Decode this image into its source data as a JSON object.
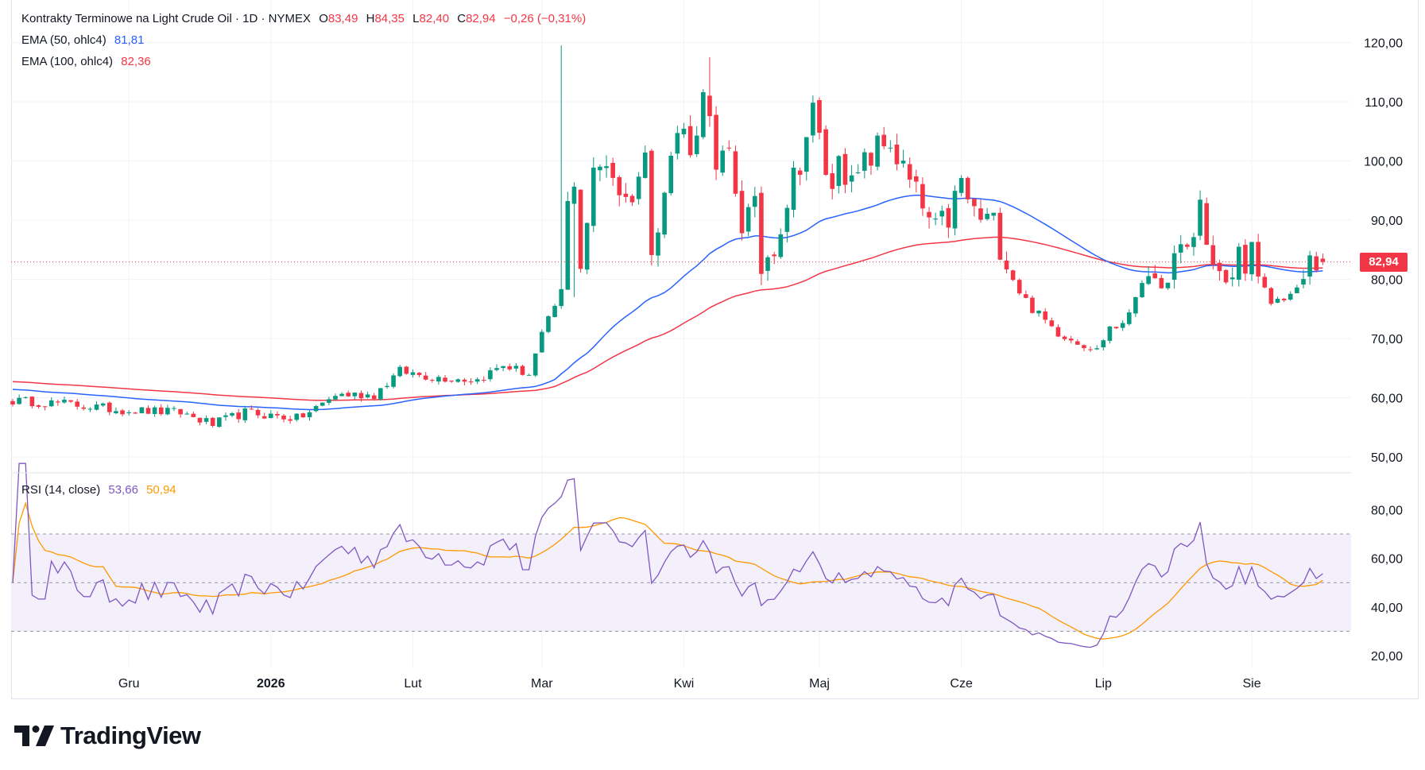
{
  "legend": {
    "title": "Kontrakty Terminowe na Light Crude Oil · 1D · NYMEX",
    "o_label": "O",
    "o_value": "83,49",
    "h_label": "H",
    "h_value": "84,35",
    "l_label": "L",
    "l_value": "82,40",
    "c_label": "C",
    "c_value": "82,94",
    "change": "−0,26 (−0,31%)",
    "ema50_label": "EMA (50, ohlc4)",
    "ema50_value": "81,81",
    "ema100_label": "EMA (100, ohlc4)",
    "ema100_value": "82,36",
    "rsi_label": "RSI (14, close)",
    "rsi_value": "53,66",
    "rsi_ma_value": "50,94"
  },
  "price_tag": "82,94",
  "brand": {
    "name": "TradingView",
    "icon": "tradingview-logo-icon"
  },
  "colors": {
    "up": "#089981",
    "down": "#f23645",
    "ema50": "#2962ff",
    "ema100": "#f23645",
    "rsi": "#7e57c2",
    "rsi_ma": "#ff9800",
    "rsi_band": "#f3effb"
  },
  "chart_data": [
    {
      "type": "candlestick",
      "title": "Kontrakty Terminowe na Light Crude Oil · 1D · NYMEX",
      "ylim": [
        50,
        120
      ],
      "y_ticks": [
        "120,00",
        "110,00",
        "100,00",
        "90,00",
        "80,00",
        "70,00",
        "60,00",
        "50,00"
      ],
      "y_tick_values": [
        120,
        110,
        100,
        90,
        80,
        70,
        60,
        50
      ],
      "x_ticks": [
        {
          "label": "Gru",
          "index": 18,
          "bold": false
        },
        {
          "label": "2026",
          "index": 40,
          "bold": true
        },
        {
          "label": "Lut",
          "index": 62,
          "bold": false
        },
        {
          "label": "Mar",
          "index": 82,
          "bold": false
        },
        {
          "label": "Kwi",
          "index": 104,
          "bold": false
        },
        {
          "label": "Maj",
          "index": 125,
          "bold": false
        },
        {
          "label": "Cze",
          "index": 147,
          "bold": false
        },
        {
          "label": "Lip",
          "index": 169,
          "bold": false
        },
        {
          "label": "Sie",
          "index": 192,
          "bold": false
        }
      ],
      "last_close": 82.94,
      "ema50_last": 81.81,
      "ema100_last": 82.36,
      "waypoints": [
        [
          0,
          59.5
        ],
        [
          8,
          59.0
        ],
        [
          16,
          58.0
        ],
        [
          26,
          57.5
        ],
        [
          31,
          55.5
        ],
        [
          36,
          57.5
        ],
        [
          44,
          56.5
        ],
        [
          46,
          57.5
        ],
        [
          50,
          60.5
        ],
        [
          56,
          60.5
        ],
        [
          60,
          64.5
        ],
        [
          65,
          63.5
        ],
        [
          72,
          63.0
        ],
        [
          76,
          65.5
        ],
        [
          80,
          64.0
        ],
        [
          82,
          70.5
        ],
        [
          85,
          78.0
        ],
        [
          86,
          92.0
        ],
        [
          87,
          97.5
        ],
        [
          88,
          83.0
        ],
        [
          90,
          97.0
        ],
        [
          92,
          100.5
        ],
        [
          95,
          93.0
        ],
        [
          98,
          100.0
        ],
        [
          99,
          87.0
        ],
        [
          101,
          95.0
        ],
        [
          103,
          105.0
        ],
        [
          106,
          103.0
        ],
        [
          107,
          114.5
        ],
        [
          109,
          97.0
        ],
        [
          111,
          101.0
        ],
        [
          113,
          90.0
        ],
        [
          115,
          91.0
        ],
        [
          116,
          82.0
        ],
        [
          118,
          86.5
        ],
        [
          121,
          97.0
        ],
        [
          124,
          108.0
        ],
        [
          127,
          94.0
        ],
        [
          128,
          103.0
        ],
        [
          130,
          95.0
        ],
        [
          133,
          101.0
        ],
        [
          136,
          103.5
        ],
        [
          138,
          98.0
        ],
        [
          140,
          94.0
        ],
        [
          143,
          87.5
        ],
        [
          145,
          90.5
        ],
        [
          147,
          96.0
        ],
        [
          149,
          91.0
        ],
        [
          152,
          89.0
        ],
        [
          154,
          84.0
        ],
        [
          156,
          78.0
        ],
        [
          158,
          75.0
        ],
        [
          162,
          71.0
        ],
        [
          166,
          69.0
        ],
        [
          168,
          68.0
        ],
        [
          170,
          72.0
        ],
        [
          172,
          72.0
        ],
        [
          175,
          80.0
        ],
        [
          179,
          79.0
        ],
        [
          181,
          85.0
        ],
        [
          183,
          87.0
        ],
        [
          184,
          93.0
        ],
        [
          186,
          82.0
        ],
        [
          188,
          79.0
        ],
        [
          190,
          84.0
        ],
        [
          192,
          84.0
        ],
        [
          193,
          80.0
        ],
        [
          195,
          76.0
        ],
        [
          197,
          77.0
        ],
        [
          199,
          78.0
        ],
        [
          201,
          82.5
        ],
        [
          203,
          82.94
        ]
      ]
    },
    {
      "type": "line",
      "title": "RSI (14, close)",
      "ylim": [
        15,
        92
      ],
      "y_ticks": [
        "80,00",
        "60,00",
        "40,00",
        "20,00"
      ],
      "y_tick_values": [
        80,
        60,
        40,
        20
      ],
      "bands": [
        70,
        50,
        30
      ],
      "rsi_last": 53.66,
      "rsi_ma_last": 50.94
    }
  ]
}
